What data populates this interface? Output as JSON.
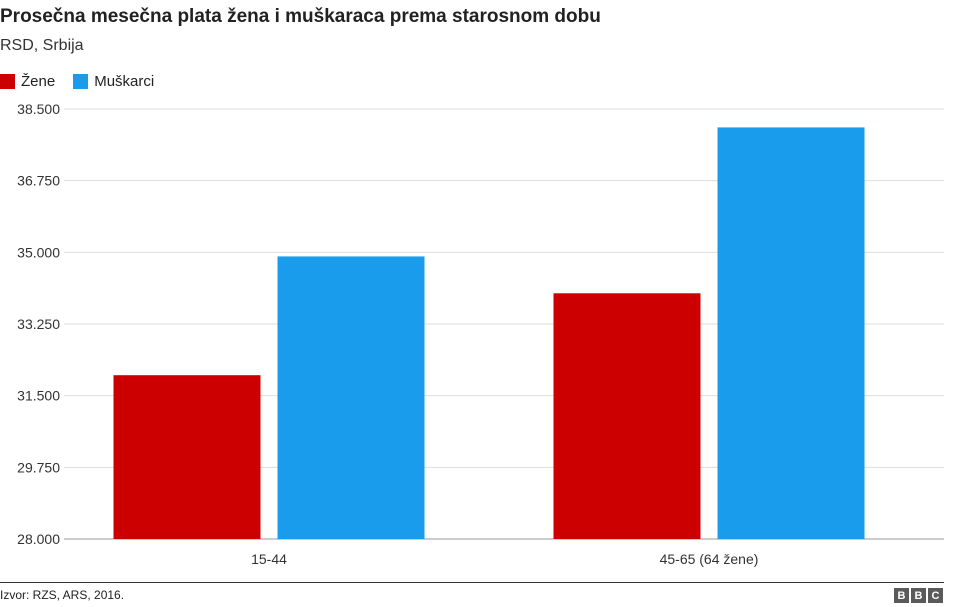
{
  "header": {
    "title": "Prosečna mesečna plata žena i muškaraca prema starosnom dobu",
    "subtitle": "RSD, Srbija"
  },
  "legend": [
    {
      "label": "Žene",
      "color": "#cc0000"
    },
    {
      "label": "Muškarci",
      "color": "#1a9ced"
    }
  ],
  "chart_data": {
    "type": "bar",
    "title": "Prosečna mesečna plata žena i muškaraca prema starosnom dobu",
    "subtitle": "RSD, Srbija",
    "categories": [
      "15-44",
      "45-65 (64 žene)"
    ],
    "series": [
      {
        "name": "Žene",
        "color": "#cc0000",
        "values": [
          32000,
          34000
        ]
      },
      {
        "name": "Muškarci",
        "color": "#1a9ced",
        "values": [
          34900,
          38050
        ]
      }
    ],
    "ylim": [
      28000,
      38500
    ],
    "yticks": [
      28000,
      29750,
      31500,
      33250,
      35000,
      36750,
      38500
    ],
    "ytick_labels": [
      "28.000",
      "29.750",
      "31.500",
      "33.250",
      "35.000",
      "36.750",
      "38.500"
    ],
    "grid": true,
    "legend_position": "top-left",
    "xlabel": "",
    "ylabel": ""
  },
  "footer": {
    "source": "Izvor: RZS, ARS, 2016.",
    "logo": [
      "B",
      "B",
      "C"
    ]
  }
}
